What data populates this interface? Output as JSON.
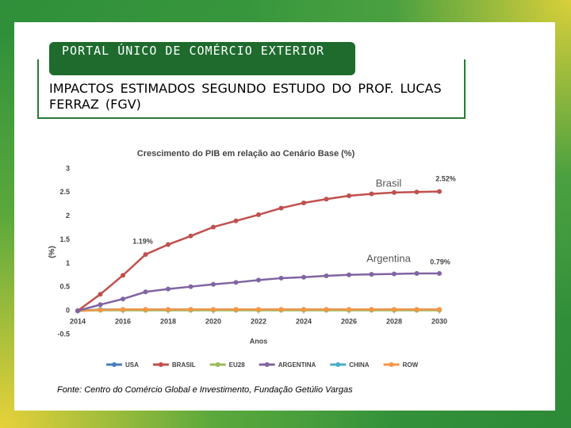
{
  "slide": {
    "header": "PORTAL ÚNICO DE COMÉRCIO EXTERIOR",
    "title": "IMPACTOS ESTIMADOS SEGUNDO ESTUDO DO PROF. LUCAS FERRAZ (FGV)",
    "source": "Fonte: Centro do Comércio Global e Investimento, Fundação Getúlio Vargas"
  },
  "chart_data": {
    "type": "line",
    "title": "Crescimento do PIB em relação ao Cenário Base (%)",
    "x_label": "Anos",
    "y_label": "(%)",
    "x": [
      2014,
      2015,
      2016,
      2017,
      2018,
      2019,
      2020,
      2021,
      2022,
      2023,
      2024,
      2025,
      2026,
      2027,
      2028,
      2029,
      2030
    ],
    "xlim": [
      2014,
      2030
    ],
    "xticks": [
      2014,
      2016,
      2018,
      2020,
      2022,
      2024,
      2026,
      2028,
      2030
    ],
    "ylim": [
      -0.5,
      3
    ],
    "yticks": [
      -0.5,
      0,
      0.5,
      1,
      1.5,
      2,
      2.5,
      3
    ],
    "series": [
      {
        "name": "USA",
        "color": "#4a7ebb",
        "values": [
          0,
          0.02,
          0.02,
          0.02,
          0.02,
          0.02,
          0.02,
          0.02,
          0.02,
          0.02,
          0.02,
          0.02,
          0.02,
          0.02,
          0.02,
          0.02,
          0.02
        ]
      },
      {
        "name": "EU28",
        "color": "#9bbb59",
        "values": [
          0,
          0.01,
          0.01,
          0.01,
          0.01,
          0.01,
          0.01,
          0.01,
          0.01,
          0.01,
          0.01,
          0.01,
          0.01,
          0.01,
          0.01,
          0.01,
          0.01
        ]
      },
      {
        "name": "CHINA",
        "color": "#4bacc6",
        "values": [
          0,
          0.03,
          0.03,
          0.03,
          0.03,
          0.03,
          0.03,
          0.03,
          0.03,
          0.03,
          0.03,
          0.03,
          0.03,
          0.03,
          0.03,
          0.03,
          0.03
        ]
      },
      {
        "name": "ROW",
        "color": "#f79646",
        "values": [
          0,
          0.02,
          0.03,
          0.03,
          0.03,
          0.03,
          0.03,
          0.03,
          0.03,
          0.03,
          0.03,
          0.03,
          0.03,
          0.03,
          0.03,
          0.03,
          0.03
        ]
      },
      {
        "name": "BRASIL",
        "color": "#c0504d",
        "values": [
          0,
          0.35,
          0.75,
          1.19,
          1.4,
          1.58,
          1.77,
          1.9,
          2.03,
          2.17,
          2.28,
          2.36,
          2.43,
          2.47,
          2.5,
          2.51,
          2.52
        ]
      },
      {
        "name": "ARGENTINA",
        "color": "#8064a2",
        "values": [
          0,
          0.13,
          0.25,
          0.4,
          0.46,
          0.51,
          0.56,
          0.6,
          0.65,
          0.69,
          0.71,
          0.74,
          0.76,
          0.77,
          0.78,
          0.79,
          0.79
        ]
      }
    ],
    "legend_order": [
      0,
      4,
      1,
      5,
      2,
      3
    ],
    "annotations": [
      "Brasil",
      "2.52%",
      "1.19%",
      "Argentina",
      "0.79%"
    ]
  }
}
